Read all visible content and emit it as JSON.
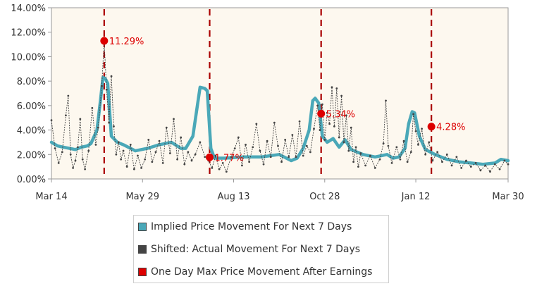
{
  "chart_data": {
    "type": "line",
    "x_tick_labels": [
      "Mar 14",
      "May 29",
      "Aug 13",
      "Oct 28",
      "Jan 12",
      "Mar 30"
    ],
    "y_tick_labels": [
      "0.00%",
      "2.00%",
      "4.00%",
      "6.00%",
      "8.00%",
      "10.00%",
      "12.00%",
      "14.00%"
    ],
    "ylim": [
      0,
      14
    ],
    "xlim_days": [
      0,
      381
    ],
    "x_tick_days": [
      0,
      76,
      152,
      228,
      304,
      381
    ],
    "grid": false,
    "legend_position": "bottom",
    "series": [
      {
        "name": "Implied Price Movement For Next 7 Days",
        "color": "#4aa8b8",
        "points": [
          [
            0,
            3.0
          ],
          [
            5,
            2.7
          ],
          [
            10,
            2.6
          ],
          [
            15,
            2.5
          ],
          [
            20,
            2.4
          ],
          [
            25,
            2.6
          ],
          [
            30,
            2.7
          ],
          [
            33,
            2.9
          ],
          [
            38,
            4.0
          ],
          [
            41,
            6.5
          ],
          [
            43,
            8.3
          ],
          [
            45,
            8.2
          ],
          [
            47,
            7.8
          ],
          [
            50,
            3.5
          ],
          [
            55,
            3.0
          ],
          [
            60,
            2.8
          ],
          [
            70,
            2.3
          ],
          [
            80,
            2.5
          ],
          [
            90,
            2.8
          ],
          [
            100,
            3.0
          ],
          [
            108,
            2.5
          ],
          [
            112,
            2.5
          ],
          [
            118,
            3.5
          ],
          [
            121,
            5.5
          ],
          [
            124,
            7.5
          ],
          [
            128,
            7.4
          ],
          [
            130,
            7.2
          ],
          [
            133,
            2.5
          ],
          [
            136,
            1.7
          ],
          [
            145,
            1.7
          ],
          [
            160,
            1.8
          ],
          [
            175,
            1.8
          ],
          [
            190,
            2.0
          ],
          [
            200,
            1.5
          ],
          [
            205,
            1.7
          ],
          [
            210,
            2.5
          ],
          [
            215,
            4.0
          ],
          [
            218,
            6.4
          ],
          [
            220,
            6.6
          ],
          [
            223,
            6.2
          ],
          [
            226,
            3.5
          ],
          [
            230,
            3.0
          ],
          [
            235,
            3.3
          ],
          [
            240,
            2.6
          ],
          [
            245,
            3.2
          ],
          [
            250,
            2.4
          ],
          [
            260,
            2.0
          ],
          [
            270,
            1.8
          ],
          [
            280,
            2.0
          ],
          [
            285,
            1.7
          ],
          [
            290,
            1.8
          ],
          [
            295,
            2.5
          ],
          [
            298,
            4.5
          ],
          [
            301,
            5.5
          ],
          [
            303,
            5.4
          ],
          [
            307,
            3.5
          ],
          [
            312,
            2.4
          ],
          [
            320,
            2.0
          ],
          [
            330,
            1.6
          ],
          [
            340,
            1.4
          ],
          [
            350,
            1.3
          ],
          [
            360,
            1.2
          ],
          [
            370,
            1.3
          ],
          [
            375,
            1.6
          ],
          [
            381,
            1.5
          ]
        ]
      },
      {
        "name": "Shifted: Actual Movement For Next 7 Days",
        "color": "#444444",
        "points": [
          [
            0,
            4.8
          ],
          [
            3,
            2.5
          ],
          [
            6,
            1.3
          ],
          [
            9,
            2.2
          ],
          [
            12,
            5.2
          ],
          [
            14,
            6.8
          ],
          [
            16,
            2.0
          ],
          [
            18,
            0.9
          ],
          [
            20,
            1.5
          ],
          [
            22,
            2.6
          ],
          [
            24,
            4.9
          ],
          [
            26,
            1.6
          ],
          [
            28,
            0.8
          ],
          [
            31,
            2.3
          ],
          [
            34,
            5.8
          ],
          [
            37,
            2.8
          ],
          [
            39,
            4.2
          ],
          [
            42,
            7.6
          ],
          [
            44,
            11.3
          ],
          [
            46,
            7.3
          ],
          [
            48,
            4.6
          ],
          [
            50,
            8.4
          ],
          [
            52,
            4.3
          ],
          [
            54,
            2.0
          ],
          [
            56,
            3.0
          ],
          [
            58,
            1.6
          ],
          [
            60,
            2.3
          ],
          [
            63,
            1.0
          ],
          [
            66,
            2.8
          ],
          [
            69,
            0.8
          ],
          [
            72,
            1.9
          ],
          [
            75,
            0.9
          ],
          [
            78,
            1.6
          ],
          [
            81,
            3.2
          ],
          [
            84,
            1.4
          ],
          [
            87,
            2.2
          ],
          [
            90,
            3.1
          ],
          [
            93,
            1.3
          ],
          [
            96,
            4.2
          ],
          [
            99,
            2.1
          ],
          [
            102,
            4.9
          ],
          [
            105,
            1.6
          ],
          [
            108,
            3.4
          ],
          [
            111,
            1.2
          ],
          [
            114,
            2.2
          ],
          [
            117,
            1.5
          ],
          [
            120,
            2.0
          ],
          [
            124,
            3.0
          ],
          [
            128,
            1.8
          ],
          [
            131,
            1.5
          ],
          [
            134,
            0.9
          ],
          [
            137,
            1.9
          ],
          [
            140,
            0.8
          ],
          [
            143,
            1.3
          ],
          [
            146,
            0.6
          ],
          [
            150,
            1.8
          ],
          [
            153,
            2.5
          ],
          [
            156,
            3.4
          ],
          [
            159,
            1.1
          ],
          [
            162,
            2.8
          ],
          [
            165,
            1.4
          ],
          [
            168,
            2.6
          ],
          [
            171,
            4.5
          ],
          [
            174,
            2.3
          ],
          [
            177,
            1.2
          ],
          [
            180,
            3.1
          ],
          [
            183,
            1.8
          ],
          [
            186,
            4.6
          ],
          [
            189,
            2.7
          ],
          [
            192,
            1.4
          ],
          [
            195,
            3.2
          ],
          [
            198,
            1.8
          ],
          [
            201,
            3.6
          ],
          [
            204,
            1.8
          ],
          [
            207,
            4.7
          ],
          [
            210,
            1.9
          ],
          [
            213,
            2.7
          ],
          [
            216,
            2.2
          ],
          [
            219,
            4.1
          ],
          [
            222,
            6.0
          ],
          [
            224,
            4.0
          ],
          [
            226,
            6.1
          ],
          [
            228,
            3.2
          ],
          [
            230,
            5.4
          ],
          [
            232,
            4.5
          ],
          [
            234,
            7.5
          ],
          [
            236,
            4.3
          ],
          [
            238,
            7.4
          ],
          [
            240,
            3.4
          ],
          [
            242,
            6.8
          ],
          [
            244,
            3.0
          ],
          [
            246,
            5.2
          ],
          [
            248,
            2.3
          ],
          [
            250,
            4.2
          ],
          [
            252,
            1.4
          ],
          [
            254,
            2.6
          ],
          [
            256,
            1.0
          ],
          [
            258,
            2.1
          ],
          [
            262,
            1.1
          ],
          [
            266,
            1.9
          ],
          [
            270,
            0.9
          ],
          [
            274,
            1.6
          ],
          [
            277,
            2.9
          ],
          [
            279,
            6.4
          ],
          [
            281,
            2.7
          ],
          [
            284,
            1.3
          ],
          [
            288,
            2.6
          ],
          [
            291,
            1.6
          ],
          [
            294,
            3.1
          ],
          [
            297,
            1.4
          ],
          [
            300,
            2.2
          ],
          [
            302,
            5.3
          ],
          [
            304,
            3.9
          ],
          [
            306,
            2.8
          ],
          [
            309,
            4.1
          ],
          [
            312,
            2.0
          ],
          [
            315,
            3.0
          ],
          [
            318,
            1.5
          ],
          [
            322,
            2.2
          ],
          [
            326,
            1.4
          ],
          [
            330,
            2.0
          ],
          [
            334,
            1.1
          ],
          [
            338,
            1.8
          ],
          [
            342,
            0.9
          ],
          [
            346,
            1.5
          ],
          [
            350,
            1.0
          ],
          [
            354,
            1.3
          ],
          [
            358,
            0.7
          ],
          [
            362,
            1.1
          ],
          [
            366,
            0.6
          ],
          [
            370,
            1.2
          ],
          [
            374,
            0.8
          ],
          [
            378,
            1.5
          ],
          [
            381,
            1.2
          ]
        ]
      },
      {
        "name": "One Day Max Price Movement After Earnings",
        "color": "#dd0000",
        "points": [
          [
            44,
            11.29
          ],
          [
            132,
            1.77
          ],
          [
            225,
            5.34
          ],
          [
            317,
            4.28
          ]
        ],
        "labels": [
          "11.29%",
          "1.77%",
          "5.34%",
          "4.28%"
        ]
      }
    ],
    "earnings_markers_days": [
      44,
      132,
      225,
      317
    ]
  },
  "colors": {
    "plot_background": "#fdf8ef",
    "plot_border": "#999999",
    "earnings_line": "#aa0000",
    "label_text": "#dd0000",
    "axis_text": "#333333"
  },
  "legend": {
    "items": [
      {
        "label": "Implied Price Movement For Next 7 Days",
        "color": "#4aa8b8"
      },
      {
        "label": "Shifted: Actual Movement For Next 7 Days",
        "color": "#444444"
      },
      {
        "label": "One Day Max Price Movement After Earnings",
        "color": "#dd0000"
      }
    ]
  }
}
